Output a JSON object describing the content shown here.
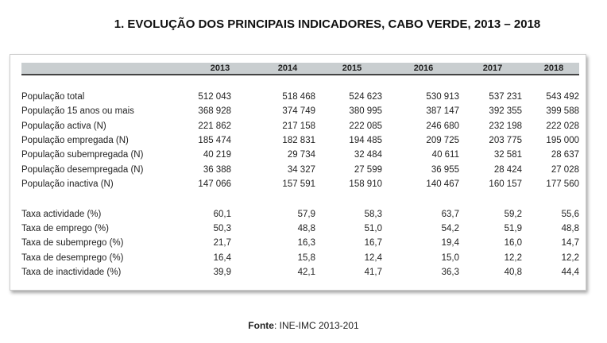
{
  "title": "1.   EVOLUÇÃO DOS PRINCIPAIS INDICADORES, CABO VERDE, 2013 – 2018",
  "table": {
    "years": [
      "2013",
      "2014",
      "2015",
      "2016",
      "2017",
      "2018"
    ],
    "rows": [
      {
        "label": "População total",
        "values": [
          "512 043",
          "518 468",
          "524 623",
          "530 913",
          "537 231",
          "543 492"
        ]
      },
      {
        "label": "População 15 anos ou mais",
        "values": [
          "368 928",
          "374 749",
          "380 995",
          "387 147",
          "392 355",
          "399 588"
        ]
      },
      {
        "label": "População activa (N)",
        "values": [
          "221 862",
          "217 158",
          "222 085",
          "246 680",
          "232 198",
          "222 028"
        ]
      },
      {
        "label": "População empregada (N)",
        "values": [
          "185 474",
          "182 831",
          "194 485",
          "209 725",
          "203 775",
          "195 000"
        ]
      },
      {
        "label": "População subempregada (N)",
        "values": [
          "40 219",
          "29 734",
          "32 484",
          "40 611",
          "32 581",
          "28 637"
        ]
      },
      {
        "label": "População desempregada (N)",
        "values": [
          "36 388",
          "34 327",
          "27 599",
          "36 955",
          "28 424",
          "27 028"
        ]
      },
      {
        "label": "População inactiva (N)",
        "values": [
          "147 066",
          "157 591",
          "158 910",
          "140 467",
          "160 157",
          "177 560"
        ]
      },
      {
        "label": "Taxa actividade (%)",
        "values": [
          "60,1",
          "57,9",
          "58,3",
          "63,7",
          "59,2",
          "55,6"
        ]
      },
      {
        "label": "Taxa de emprego (%)",
        "values": [
          "50,3",
          "48,8",
          "51,0",
          "54,2",
          "51,9",
          "48,8"
        ]
      },
      {
        "label": "Taxa de subemprego (%)",
        "values": [
          "21,7",
          "16,3",
          "16,7",
          "19,4",
          "16,0",
          "14,7"
        ]
      },
      {
        "label": "Taxa de desemprego (%)",
        "values": [
          "16,4",
          "15,8",
          "12,4",
          "15,0",
          "12,2",
          "12,2"
        ]
      },
      {
        "label": "Taxa de inactividade (%)",
        "values": [
          "39,9",
          "42,1",
          "41,7",
          "36,3",
          "40,8",
          "44,4"
        ]
      }
    ]
  },
  "source": {
    "label": "Fonte",
    "text": ": INE-IMC 2013-201"
  }
}
